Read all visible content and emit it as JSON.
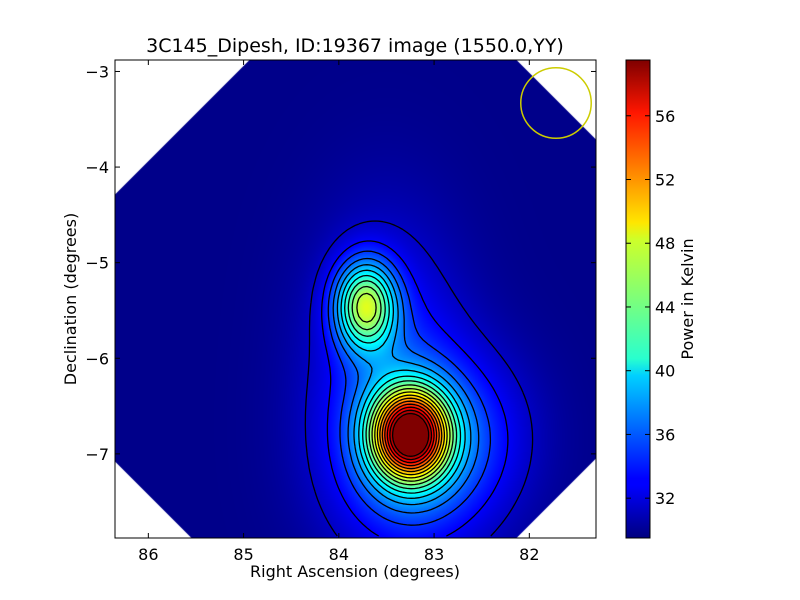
{
  "chart_data": {
    "type": "heatmap",
    "title": "3C145_Dipesh, ID:19367 image (1550.0,YY)",
    "xlabel": "Right Ascension (degrees)",
    "ylabel": "Declination (degrees)",
    "xlim": [
      86.35,
      81.3
    ],
    "ylim": [
      -7.88,
      -2.88
    ],
    "x_ticks": [
      86,
      85,
      84,
      83,
      82
    ],
    "x_tick_labels": [
      "86",
      "85",
      "84",
      "83",
      "82"
    ],
    "y_ticks": [
      -3,
      -4,
      -5,
      -6,
      -7
    ],
    "y_tick_labels": [
      "−3",
      "−4",
      "−5",
      "−6",
      "−7"
    ],
    "colorbar": {
      "label": "Power in Kelvin",
      "range": [
        29.5,
        59.5
      ],
      "ticks": [
        32,
        36,
        40,
        44,
        48,
        52,
        56
      ],
      "tick_labels": [
        "32",
        "36",
        "40",
        "44",
        "48",
        "52",
        "56"
      ],
      "colormap": "jet"
    },
    "sources": [
      {
        "ra": 83.25,
        "dec": -6.8,
        "peak": 59
      },
      {
        "ra": 83.72,
        "dec": -5.45,
        "peak": 48
      }
    ],
    "background_level": 29.8,
    "beam": {
      "ra": 81.72,
      "dec": -3.33,
      "radius_deg": 0.37,
      "color": "#cccc00"
    },
    "contour_color": "#000000",
    "blank_color": "#ffffff",
    "grid": false
  }
}
